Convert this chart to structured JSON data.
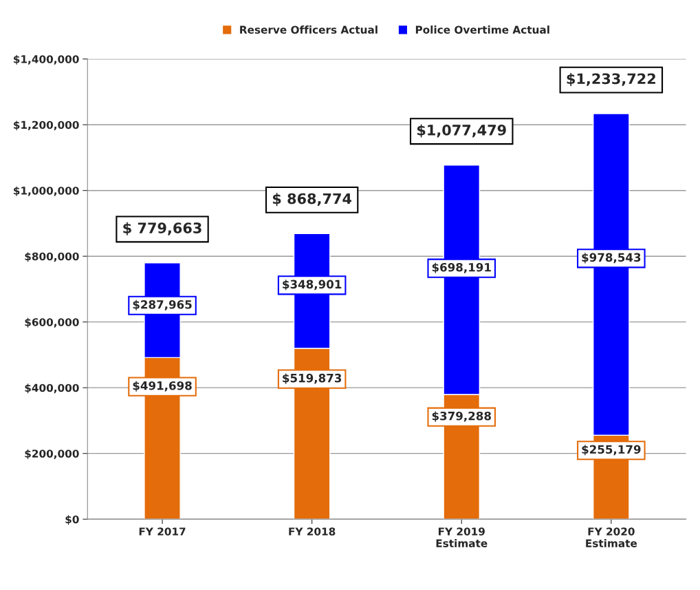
{
  "chart_data": {
    "type": "bar",
    "stacked": true,
    "categories": [
      "FY 2017",
      "FY 2018",
      "FY 2019\nEstimate",
      "FY 2020\nEstimate"
    ],
    "series": [
      {
        "name": "Reserve Officers Actual",
        "color": "#e46c0a",
        "values": [
          491698,
          519873,
          379288,
          255179
        ],
        "value_labels": [
          "$491,698",
          "$519,873",
          "$379,288",
          "$255,179"
        ]
      },
      {
        "name": "Police Overtime Actual",
        "color": "#0000ff",
        "values": [
          287965,
          348901,
          698191,
          978543
        ],
        "value_labels": [
          "$287,965",
          "$348,901",
          "$698,191",
          "$978,543"
        ]
      }
    ],
    "totals": [
      "$ 779,663",
      "$ 868,774",
      "$1,077,479",
      "$1,233,722"
    ],
    "ylim": [
      0,
      1400000
    ],
    "yticks": [
      {
        "value": 0,
        "label": "$0"
      },
      {
        "value": 200000,
        "label": "$200,000"
      },
      {
        "value": 400000,
        "label": "$400,000"
      },
      {
        "value": 600000,
        "label": "$600,000"
      },
      {
        "value": 800000,
        "label": "$800,000"
      },
      {
        "value": 1000000,
        "label": "$1,000,000"
      },
      {
        "value": 1200000,
        "label": "$1,200,000"
      },
      {
        "value": 1400000,
        "label": "$1,400,000"
      }
    ],
    "grid": "y",
    "legend": "top"
  }
}
